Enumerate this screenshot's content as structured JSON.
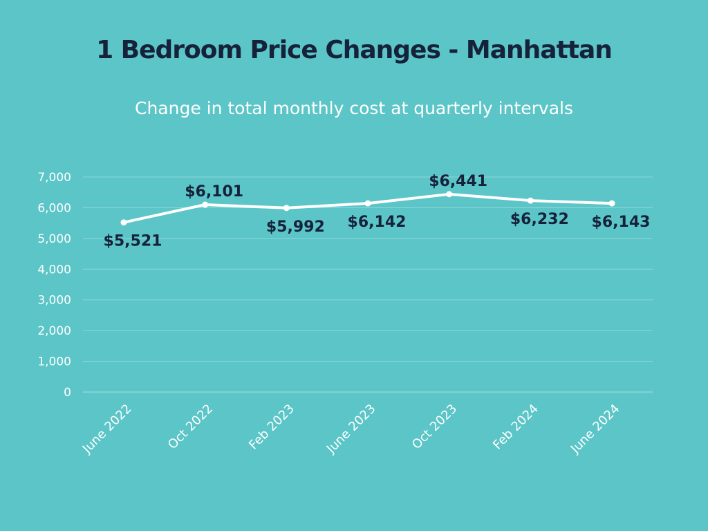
{
  "title": "1 Bedroom Price Changes - Manhattan",
  "subtitle": "Change in total monthly cost at quarterly intervals",
  "colors": {
    "background": "#5bc5c7",
    "line": "#ffffff",
    "title": "#16213a",
    "data_label": "#16213a",
    "gridline": "#8fd8d9",
    "axis_text": "#ffffff"
  },
  "chart_data": {
    "type": "line",
    "title": "1 Bedroom Price Changes - Manhattan",
    "subtitle": "Change in total monthly cost at quarterly intervals",
    "categories": [
      "June 2022",
      "Oct 2022",
      "Feb 2023",
      "June 2023",
      "Oct 2023",
      "Feb 2024",
      "June 2024"
    ],
    "series": [
      {
        "values": [
          5521,
          6101,
          5992,
          6142,
          6441,
          6232,
          6143
        ],
        "labels": [
          "$5,521",
          "$6,101",
          "$5,992",
          "$6,142",
          "$6,441",
          "$6,232",
          "$6,143"
        ],
        "label_position": [
          "below",
          "above",
          "below",
          "below",
          "above",
          "below",
          "below"
        ]
      }
    ],
    "ylim": [
      0,
      7000
    ],
    "yticks": [
      0,
      1000,
      2000,
      3000,
      4000,
      5000,
      6000,
      7000
    ],
    "ytick_labels": [
      "0",
      "1,000",
      "2,000",
      "3,000",
      "4,000",
      "5,000",
      "6,000",
      "7,000"
    ],
    "xlabel": "",
    "ylabel": "",
    "grid": true,
    "legend": "none"
  }
}
